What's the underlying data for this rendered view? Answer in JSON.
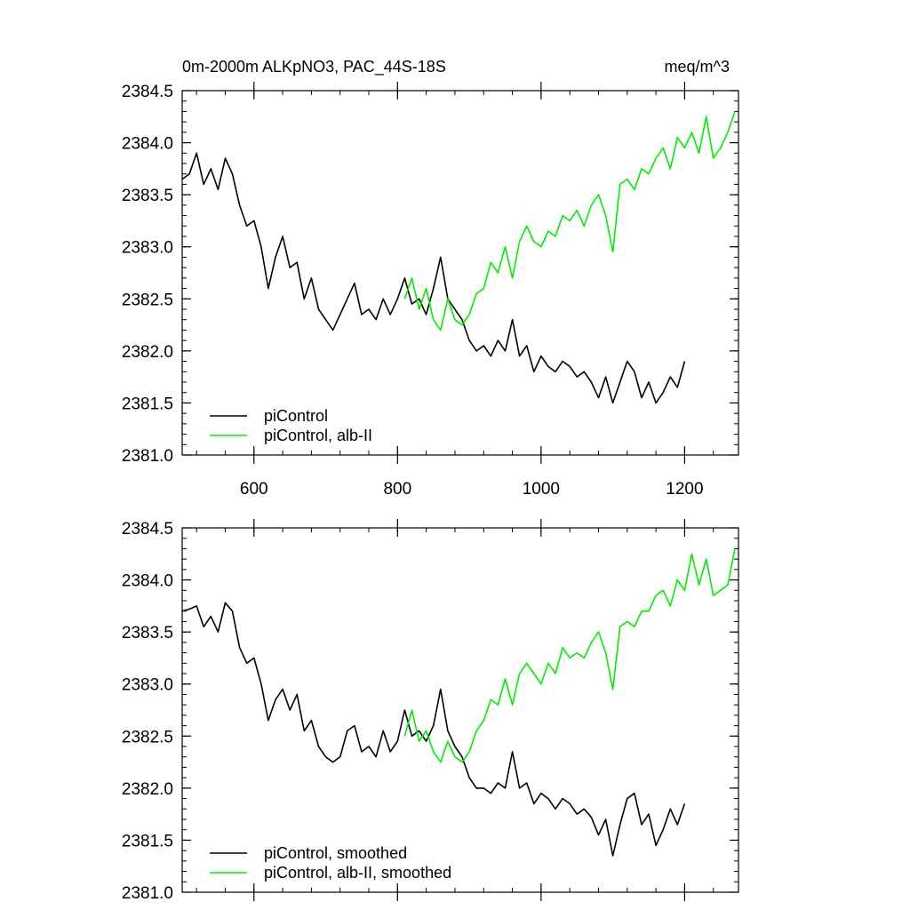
{
  "chart_data": [
    {
      "type": "line",
      "title_left": "0m-2000m ALKpNO3, PAC_44S-18S",
      "title_right": "meq/m^3",
      "xlim": [
        500,
        1275
      ],
      "ylim": [
        2381.0,
        2384.5
      ],
      "x_ticks": [
        600,
        800,
        1000,
        1200
      ],
      "x_tick_labels": [
        "600",
        "800",
        "1000",
        "1200"
      ],
      "y_ticks": [
        2381.0,
        2381.5,
        2382.0,
        2382.5,
        2383.0,
        2383.5,
        2384.0,
        2384.5
      ],
      "y_tick_labels": [
        "2381.0",
        "2381.5",
        "2382.0",
        "2382.5",
        "2383.0",
        "2383.5",
        "2384.0",
        "2384.5"
      ],
      "legend": [
        "piControl",
        "piControl, alb-II"
      ],
      "legend_position": "bottom-left",
      "series": [
        {
          "name": "piControl",
          "color": "#000000",
          "x": [
            500,
            510,
            520,
            530,
            540,
            550,
            560,
            570,
            580,
            590,
            600,
            610,
            620,
            630,
            640,
            650,
            660,
            670,
            680,
            690,
            700,
            710,
            720,
            730,
            740,
            750,
            760,
            770,
            780,
            790,
            800,
            810,
            820,
            830,
            840,
            850,
            860,
            870,
            880,
            890,
            900,
            910,
            920,
            930,
            940,
            950,
            960,
            970,
            980,
            990,
            1000,
            1010,
            1020,
            1030,
            1040,
            1050,
            1060,
            1070,
            1080,
            1090,
            1100,
            1110,
            1120,
            1130,
            1140,
            1150,
            1160,
            1170,
            1180,
            1190,
            1200
          ],
          "y": [
            2383.65,
            2383.7,
            2383.9,
            2383.6,
            2383.75,
            2383.55,
            2383.85,
            2383.7,
            2383.4,
            2383.2,
            2383.25,
            2383.0,
            2382.6,
            2382.9,
            2383.1,
            2382.8,
            2382.85,
            2382.5,
            2382.7,
            2382.4,
            2382.3,
            2382.2,
            2382.35,
            2382.5,
            2382.65,
            2382.35,
            2382.4,
            2382.3,
            2382.5,
            2382.35,
            2382.5,
            2382.7,
            2382.45,
            2382.5,
            2382.35,
            2382.6,
            2382.9,
            2382.5,
            2382.4,
            2382.3,
            2382.1,
            2382.0,
            2382.05,
            2381.95,
            2382.1,
            2382.0,
            2382.3,
            2381.95,
            2382.05,
            2381.8,
            2381.95,
            2381.85,
            2381.8,
            2381.9,
            2381.85,
            2381.75,
            2381.8,
            2381.7,
            2381.55,
            2381.75,
            2381.5,
            2381.7,
            2381.9,
            2381.8,
            2381.55,
            2381.7,
            2381.5,
            2381.6,
            2381.75,
            2381.65,
            2381.9
          ]
        },
        {
          "name": "piControl, alb-II",
          "color": "#00ee00",
          "x": [
            810,
            820,
            830,
            840,
            850,
            860,
            870,
            880,
            890,
            900,
            910,
            920,
            930,
            940,
            950,
            960,
            970,
            980,
            990,
            1000,
            1010,
            1020,
            1030,
            1040,
            1050,
            1060,
            1070,
            1080,
            1090,
            1100,
            1110,
            1120,
            1130,
            1140,
            1150,
            1160,
            1170,
            1180,
            1190,
            1200,
            1210,
            1220,
            1230,
            1240,
            1250,
            1260,
            1270
          ],
          "y": [
            2382.5,
            2382.7,
            2382.4,
            2382.6,
            2382.3,
            2382.2,
            2382.5,
            2382.3,
            2382.25,
            2382.35,
            2382.55,
            2382.6,
            2382.85,
            2382.75,
            2383.0,
            2382.7,
            2383.05,
            2383.2,
            2383.05,
            2383.0,
            2383.15,
            2383.1,
            2383.3,
            2383.25,
            2383.35,
            2383.2,
            2383.4,
            2383.5,
            2383.3,
            2382.95,
            2383.6,
            2383.65,
            2383.55,
            2383.75,
            2383.7,
            2383.85,
            2383.95,
            2383.75,
            2384.05,
            2383.95,
            2384.1,
            2383.9,
            2384.25,
            2383.85,
            2383.95,
            2384.1,
            2384.3
          ]
        }
      ]
    },
    {
      "type": "line",
      "xlim": [
        500,
        1275
      ],
      "ylim": [
        2381.0,
        2384.5
      ],
      "x_ticks": [
        600,
        800,
        1000,
        1200
      ],
      "y_ticks": [
        2381.0,
        2381.5,
        2382.0,
        2382.5,
        2383.0,
        2383.5,
        2384.0,
        2384.5
      ],
      "y_tick_labels": [
        "2381.0",
        "2381.5",
        "2382.0",
        "2382.5",
        "2383.0",
        "2383.5",
        "2384.0",
        "2384.5"
      ],
      "legend": [
        "piControl, smoothed",
        "piControl, alb-II, smoothed"
      ],
      "legend_position": "bottom-left",
      "series": [
        {
          "name": "piControl, smoothed",
          "color": "#000000",
          "x": [
            500,
            510,
            520,
            530,
            540,
            550,
            560,
            570,
            580,
            590,
            600,
            610,
            620,
            630,
            640,
            650,
            660,
            670,
            680,
            690,
            700,
            710,
            720,
            730,
            740,
            750,
            760,
            770,
            780,
            790,
            800,
            810,
            820,
            830,
            840,
            850,
            860,
            870,
            880,
            890,
            900,
            910,
            920,
            930,
            940,
            950,
            960,
            970,
            980,
            990,
            1000,
            1010,
            1020,
            1030,
            1040,
            1050,
            1060,
            1070,
            1080,
            1090,
            1100,
            1110,
            1120,
            1130,
            1140,
            1150,
            1160,
            1170,
            1180,
            1190,
            1200
          ],
          "y": [
            2383.7,
            2383.72,
            2383.75,
            2383.55,
            2383.65,
            2383.5,
            2383.78,
            2383.7,
            2383.35,
            2383.2,
            2383.25,
            2383.0,
            2382.65,
            2382.85,
            2382.95,
            2382.75,
            2382.9,
            2382.55,
            2382.65,
            2382.4,
            2382.3,
            2382.25,
            2382.3,
            2382.55,
            2382.6,
            2382.35,
            2382.4,
            2382.3,
            2382.55,
            2382.35,
            2382.45,
            2382.75,
            2382.5,
            2382.55,
            2382.45,
            2382.6,
            2382.95,
            2382.55,
            2382.4,
            2382.3,
            2382.1,
            2382.0,
            2382.0,
            2381.95,
            2382.05,
            2382.0,
            2382.35,
            2382.0,
            2382.05,
            2381.85,
            2381.95,
            2381.9,
            2381.8,
            2381.9,
            2381.85,
            2381.75,
            2381.8,
            2381.72,
            2381.55,
            2381.7,
            2381.35,
            2381.65,
            2381.9,
            2381.95,
            2381.65,
            2381.75,
            2381.45,
            2381.6,
            2381.8,
            2381.65,
            2381.85
          ]
        },
        {
          "name": "piControl, alb-II, smoothed",
          "color": "#00ee00",
          "x": [
            810,
            820,
            830,
            840,
            850,
            860,
            870,
            880,
            890,
            900,
            910,
            920,
            930,
            940,
            950,
            960,
            970,
            980,
            990,
            1000,
            1010,
            1020,
            1030,
            1040,
            1050,
            1060,
            1070,
            1080,
            1090,
            1100,
            1110,
            1120,
            1130,
            1140,
            1150,
            1160,
            1170,
            1180,
            1190,
            1200,
            1210,
            1220,
            1230,
            1240,
            1250,
            1260,
            1270
          ],
          "y": [
            2382.5,
            2382.75,
            2382.45,
            2382.55,
            2382.35,
            2382.25,
            2382.45,
            2382.3,
            2382.25,
            2382.35,
            2382.55,
            2382.65,
            2382.85,
            2382.8,
            2383.05,
            2382.8,
            2383.1,
            2383.2,
            2383.1,
            2383.0,
            2383.2,
            2383.1,
            2383.35,
            2383.25,
            2383.3,
            2383.25,
            2383.4,
            2383.5,
            2383.3,
            2382.95,
            2383.55,
            2383.6,
            2383.55,
            2383.7,
            2383.7,
            2383.85,
            2383.9,
            2383.75,
            2384.0,
            2383.9,
            2384.25,
            2383.95,
            2384.2,
            2383.85,
            2383.9,
            2383.95,
            2384.3
          ]
        }
      ]
    }
  ]
}
